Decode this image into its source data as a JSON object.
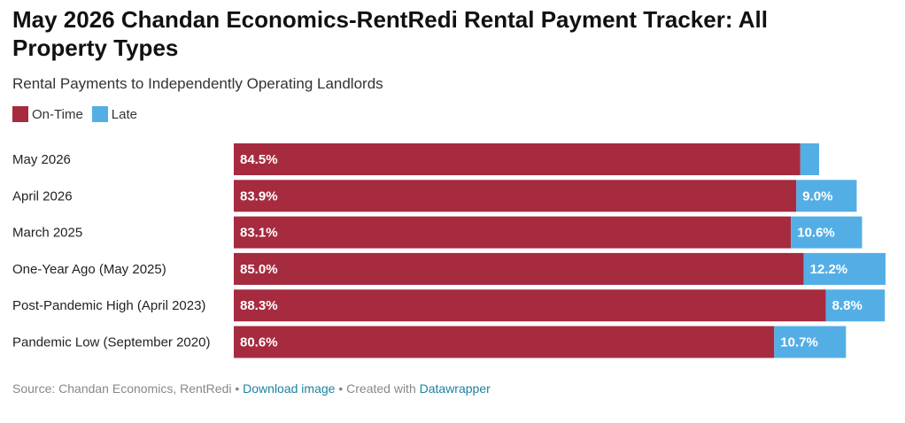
{
  "header": {
    "title": "May 2026 Chandan Economics-RentRedi Rental Payment Tracker: All Property Types",
    "subtitle": "Rental Payments to Independently Operating Landlords"
  },
  "legend": {
    "items": [
      {
        "label": "On-Time",
        "color": "#a62b3f"
      },
      {
        "label": "Late",
        "color": "#54aee6"
      }
    ]
  },
  "chart_data": {
    "type": "bar",
    "orientation": "horizontal",
    "stacked": true,
    "title": "May 2026 Chandan Economics-RentRedi Rental Payment Tracker: All Property Types",
    "subtitle": "Rental Payments to Independently Operating Landlords",
    "categories": [
      "May 2026",
      "April 2026",
      "March 2025",
      "One-Year Ago (May 2025)",
      "Post-Pandemic High (April 2023)",
      "Pandemic Low (September 2020)"
    ],
    "series": [
      {
        "name": "On-Time",
        "color": "#a62b3f",
        "values": [
          84.5,
          83.9,
          83.1,
          85.0,
          88.3,
          80.6
        ],
        "labels": [
          "84.5%",
          "83.9%",
          "83.1%",
          "85.0%",
          "88.3%",
          "80.6%"
        ]
      },
      {
        "name": "Late",
        "color": "#54aee6",
        "values": [
          2.8,
          9.0,
          10.6,
          12.2,
          8.8,
          10.7
        ],
        "labels": [
          "",
          "9.0%",
          "10.6%",
          "12.2%",
          "8.8%",
          "10.7%"
        ]
      }
    ],
    "xlim": [
      0,
      97.2
    ],
    "grid": false,
    "legend_position": "top-left"
  },
  "footer": {
    "source": "Source: Chandan Economics, RentRedi",
    "separator": " • ",
    "download_link": "Download image",
    "created_with": "Created with ",
    "datawrapper_link": "Datawrapper"
  }
}
